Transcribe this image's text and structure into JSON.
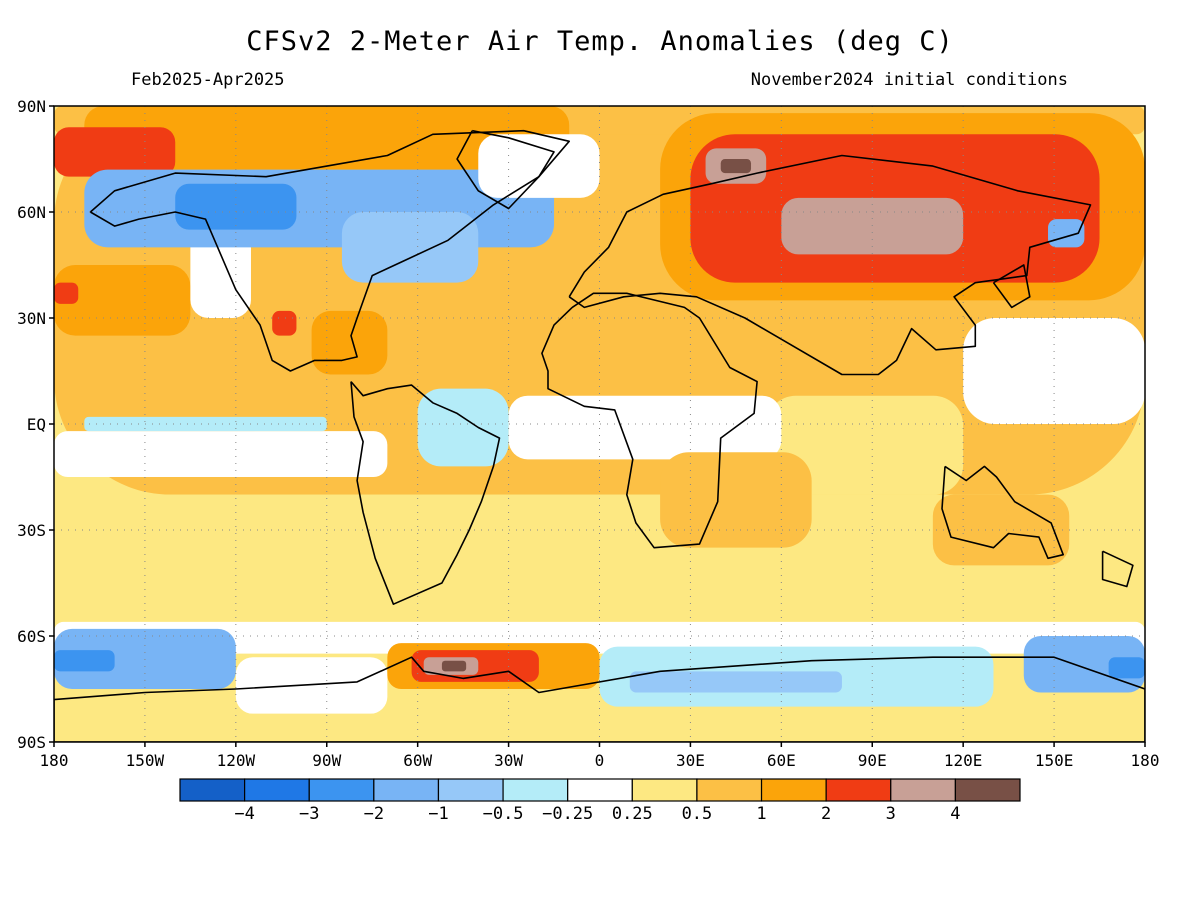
{
  "header": {
    "title": "CFSv2 2-Meter Air Temp. Anomalies (deg C)",
    "period": "Feb2025-Apr2025",
    "init": "November2024 initial conditions"
  },
  "map": {
    "lat_labels": [
      {
        "lat": 90,
        "label": "90N"
      },
      {
        "lat": 60,
        "label": "60N"
      },
      {
        "lat": 30,
        "label": "30N"
      },
      {
        "lat": 0,
        "label": "EQ"
      },
      {
        "lat": -30,
        "label": "30S"
      },
      {
        "lat": -60,
        "label": "60S"
      },
      {
        "lat": -90,
        "label": "90S"
      }
    ],
    "lon_labels": [
      {
        "lon": 0,
        "label": "180"
      },
      {
        "lon": 30,
        "label": "150W"
      },
      {
        "lon": 60,
        "label": "120W"
      },
      {
        "lon": 90,
        "label": "90W"
      },
      {
        "lon": 120,
        "label": "60W"
      },
      {
        "lon": 150,
        "label": "30W"
      },
      {
        "lon": 180,
        "label": "0"
      },
      {
        "lon": 210,
        "label": "30E"
      },
      {
        "lon": 240,
        "label": "60E"
      },
      {
        "lon": 270,
        "label": "90E"
      },
      {
        "lon": 300,
        "label": "120E"
      },
      {
        "lon": 330,
        "label": "150E"
      },
      {
        "lon": 360,
        "label": "180"
      }
    ],
    "colors": {
      "nm4": "#1460c8",
      "nm3": "#1f78e6",
      "nm2": "#3c94f0",
      "nm1": "#78b4f5",
      "nm05": "#96c8f8",
      "nm025": "#b4ecf8",
      "neutral": "#ffffff",
      "p025": "#fde882",
      "p05": "#fcc045",
      "p1": "#fba40a",
      "p2": "#f03c14",
      "p3": "#c8a096",
      "p4": "#785046"
    },
    "regions": [
      {
        "cls": "p05",
        "lon0": 0,
        "lon1": 360,
        "lat0": -20,
        "lat1": 90
      },
      {
        "cls": "p025",
        "lon0": 0,
        "lon1": 360,
        "lat0": -60,
        "lat1": -20
      },
      {
        "cls": "p05",
        "lon0": 0,
        "lon1": 360,
        "lat0": 82,
        "lat1": 90
      },
      {
        "cls": "p1",
        "lon0": 10,
        "lon1": 170,
        "lat0": 72,
        "lat1": 90
      },
      {
        "cls": "p2",
        "lon0": 0,
        "lon1": 40,
        "lat0": 70,
        "lat1": 84
      },
      {
        "cls": "p1",
        "lon0": 0,
        "lon1": 45,
        "lat0": 25,
        "lat1": 45
      },
      {
        "cls": "p2",
        "lon0": 0,
        "lon1": 8,
        "lat0": 34,
        "lat1": 40
      },
      {
        "cls": "neutral",
        "lon0": 45,
        "lon1": 65,
        "lat0": 30,
        "lat1": 55
      },
      {
        "cls": "nm1",
        "lon0": 10,
        "lon1": 165,
        "lat0": 50,
        "lat1": 72
      },
      {
        "cls": "nm2",
        "lon0": 40,
        "lon1": 80,
        "lat0": 55,
        "lat1": 68
      },
      {
        "cls": "nm05",
        "lon0": 95,
        "lon1": 140,
        "lat0": 40,
        "lat1": 60
      },
      {
        "cls": "neutral",
        "lon0": 140,
        "lon1": 180,
        "lat0": 64,
        "lat1": 82
      },
      {
        "cls": "p1",
        "lon0": 85,
        "lon1": 110,
        "lat0": 14,
        "lat1": 32
      },
      {
        "cls": "p2",
        "lon0": 72,
        "lon1": 80,
        "lat0": 25,
        "lat1": 32
      },
      {
        "cls": "p1",
        "lon0": 200,
        "lon1": 360,
        "lat0": 35,
        "lat1": 88
      },
      {
        "cls": "p2",
        "lon0": 210,
        "lon1": 345,
        "lat0": 40,
        "lat1": 82
      },
      {
        "cls": "p3",
        "lon0": 240,
        "lon1": 300,
        "lat0": 48,
        "lat1": 64
      },
      {
        "cls": "p3",
        "lon0": 215,
        "lon1": 235,
        "lat0": 68,
        "lat1": 78
      },
      {
        "cls": "p4",
        "lon0": 220,
        "lon1": 230,
        "lat0": 71,
        "lat1": 75
      },
      {
        "cls": "nm1",
        "lon0": 328,
        "lon1": 340,
        "lat0": 50,
        "lat1": 58
      },
      {
        "cls": "neutral",
        "lon0": 300,
        "lon1": 360,
        "lat0": 0,
        "lat1": 30
      },
      {
        "cls": "p025",
        "lon0": 235,
        "lon1": 300,
        "lat0": -20,
        "lat1": 8
      },
      {
        "cls": "neutral",
        "lon0": 150,
        "lon1": 240,
        "lat0": -10,
        "lat1": 8
      },
      {
        "cls": "neutral",
        "lon0": 0,
        "lon1": 110,
        "lat0": -15,
        "lat1": -2
      },
      {
        "cls": "nm025",
        "lon0": 10,
        "lon1": 90,
        "lat0": -2,
        "lat1": 2
      },
      {
        "cls": "nm025",
        "lon0": 120,
        "lon1": 150,
        "lat0": -12,
        "lat1": 10
      },
      {
        "cls": "p05",
        "lon0": 200,
        "lon1": 250,
        "lat0": -35,
        "lat1": -8
      },
      {
        "cls": "p05",
        "lon0": 290,
        "lon1": 335,
        "lat0": -40,
        "lat1": -20
      },
      {
        "cls": "neutral",
        "lon0": 0,
        "lon1": 360,
        "lat0": -65,
        "lat1": -56
      },
      {
        "cls": "nm1",
        "lon0": 0,
        "lon1": 60,
        "lat0": -75,
        "lat1": -58
      },
      {
        "cls": "nm2",
        "lon0": 0,
        "lon1": 20,
        "lat0": -70,
        "lat1": -64
      },
      {
        "cls": "nm1",
        "lon0": 320,
        "lon1": 360,
        "lat0": -76,
        "lat1": -60
      },
      {
        "cls": "nm2",
        "lon0": 348,
        "lon1": 360,
        "lat0": -72,
        "lat1": -66
      },
      {
        "cls": "nm025",
        "lon0": 180,
        "lon1": 310,
        "lat0": -80,
        "lat1": -63
      },
      {
        "cls": "nm05",
        "lon0": 190,
        "lon1": 260,
        "lat0": -76,
        "lat1": -70
      },
      {
        "cls": "neutral",
        "lon0": 60,
        "lon1": 110,
        "lat0": -82,
        "lat1": -66
      },
      {
        "cls": "p1",
        "lon0": 110,
        "lon1": 180,
        "lat0": -75,
        "lat1": -62
      },
      {
        "cls": "p2",
        "lon0": 118,
        "lon1": 160,
        "lat0": -73,
        "lat1": -64
      },
      {
        "cls": "p3",
        "lon0": 122,
        "lon1": 140,
        "lat0": -71,
        "lat1": -66
      },
      {
        "cls": "p4",
        "lon0": 128,
        "lon1": 136,
        "lat0": -70,
        "lat1": -67
      },
      {
        "cls": "p025",
        "lon0": 0,
        "lon1": 360,
        "lat0": -90,
        "lat1": -82
      }
    ],
    "coastlines": [
      [
        [
          12,
          60
        ],
        [
          20,
          66
        ],
        [
          40,
          71
        ],
        [
          70,
          70
        ],
        [
          90,
          73
        ],
        [
          110,
          76
        ],
        [
          125,
          82
        ],
        [
          155,
          83
        ],
        [
          170,
          80
        ],
        [
          160,
          70
        ],
        [
          145,
          62
        ],
        [
          130,
          52
        ],
        [
          115,
          46
        ],
        [
          110,
          44
        ],
        [
          105,
          42
        ],
        [
          100,
          30
        ],
        [
          98,
          25
        ],
        [
          100,
          19
        ],
        [
          95,
          18
        ],
        [
          86,
          18
        ],
        [
          78,
          15
        ],
        [
          72,
          18
        ],
        [
          68,
          28
        ],
        [
          60,
          38
        ],
        [
          55,
          48
        ],
        [
          50,
          58
        ],
        [
          40,
          60
        ],
        [
          28,
          58
        ],
        [
          20,
          56
        ],
        [
          12,
          60
        ]
      ],
      [
        [
          98,
          12
        ],
        [
          102,
          8
        ],
        [
          110,
          10
        ],
        [
          118,
          11
        ],
        [
          125,
          6
        ],
        [
          133,
          3
        ],
        [
          140,
          -1
        ],
        [
          147,
          -4
        ],
        [
          145,
          -12
        ],
        [
          141,
          -22
        ],
        [
          137,
          -30
        ],
        [
          133,
          -37
        ],
        [
          128,
          -45
        ],
        [
          112,
          -51
        ],
        [
          106,
          -38
        ],
        [
          102,
          -25
        ],
        [
          100,
          -16
        ],
        [
          102,
          -5
        ],
        [
          99,
          2
        ],
        [
          98,
          12
        ]
      ],
      [
        [
          170,
          36
        ],
        [
          175,
          43
        ],
        [
          183,
          50
        ],
        [
          189,
          60
        ],
        [
          201,
          65
        ],
        [
          217,
          68
        ],
        [
          232,
          71
        ],
        [
          260,
          76
        ],
        [
          290,
          73
        ],
        [
          318,
          66
        ],
        [
          342,
          62
        ],
        [
          338,
          54
        ],
        [
          322,
          50
        ],
        [
          321,
          42
        ],
        [
          304,
          40
        ],
        [
          297,
          36
        ],
        [
          304,
          28
        ],
        [
          304,
          22
        ],
        [
          291,
          21
        ],
        [
          283,
          27
        ],
        [
          278,
          18
        ],
        [
          272,
          14
        ],
        [
          260,
          14
        ],
        [
          238,
          25
        ],
        [
          228,
          30
        ],
        [
          212,
          36
        ],
        [
          200,
          37
        ],
        [
          188,
          36
        ],
        [
          175,
          33
        ],
        [
          170,
          36
        ]
      ],
      [
        [
          171,
          33
        ],
        [
          178,
          37
        ],
        [
          189,
          37
        ],
        [
          208,
          33
        ],
        [
          213,
          30
        ],
        [
          223,
          16
        ],
        [
          232,
          12
        ],
        [
          231,
          3
        ],
        [
          220,
          -4
        ],
        [
          219,
          -22
        ],
        [
          213,
          -34
        ],
        [
          198,
          -35
        ],
        [
          192,
          -28
        ],
        [
          189,
          -20
        ],
        [
          191,
          -10
        ],
        [
          185,
          4
        ],
        [
          175,
          5
        ],
        [
          163,
          10
        ],
        [
          163,
          15
        ],
        [
          161,
          20
        ],
        [
          165,
          28
        ],
        [
          171,
          33
        ]
      ],
      [
        [
          294,
          -12
        ],
        [
          301,
          -16
        ],
        [
          307,
          -12
        ],
        [
          311,
          -15
        ],
        [
          317,
          -22
        ],
        [
          329,
          -28
        ],
        [
          333,
          -37
        ],
        [
          328,
          -38
        ],
        [
          325,
          -32
        ],
        [
          315,
          -31
        ],
        [
          310,
          -35
        ],
        [
          296,
          -32
        ],
        [
          293,
          -24
        ],
        [
          294,
          -12
        ]
      ],
      [
        [
          30,
          -76
        ],
        [
          60,
          -75
        ],
        [
          100,
          -73
        ],
        [
          118,
          -66
        ],
        [
          122,
          -70
        ],
        [
          135,
          -72
        ],
        [
          150,
          -70
        ],
        [
          160,
          -76
        ],
        [
          200,
          -70
        ],
        [
          250,
          -67
        ],
        [
          290,
          -66
        ],
        [
          330,
          -66
        ],
        [
          360,
          -75
        ],
        [
          360,
          -90
        ],
        [
          0,
          -90
        ],
        [
          0,
          -78
        ],
        [
          30,
          -76
        ]
      ],
      [
        [
          138,
          83
        ],
        [
          150,
          81
        ],
        [
          165,
          77
        ],
        [
          160,
          70
        ],
        [
          150,
          61
        ],
        [
          140,
          66
        ],
        [
          133,
          75
        ],
        [
          138,
          83
        ]
      ],
      [
        [
          346,
          -36
        ],
        [
          356,
          -40
        ],
        [
          354,
          -46
        ],
        [
          346,
          -44
        ],
        [
          346,
          -36
        ]
      ],
      [
        [
          310,
          40
        ],
        [
          320,
          45
        ],
        [
          322,
          36
        ],
        [
          316,
          33
        ],
        [
          310,
          40
        ]
      ]
    ]
  },
  "colorbar": {
    "boxes": [
      {
        "cls": "nm4"
      },
      {
        "cls": "nm3"
      },
      {
        "cls": "nm2"
      },
      {
        "cls": "nm1"
      },
      {
        "cls": "nm05"
      },
      {
        "cls": "nm025"
      },
      {
        "cls": "neutral"
      },
      {
        "cls": "p025"
      },
      {
        "cls": "p05"
      },
      {
        "cls": "p1"
      },
      {
        "cls": "p2"
      },
      {
        "cls": "p3"
      },
      {
        "cls": "p4"
      }
    ],
    "labels": [
      "-4",
      "-3",
      "-2",
      "-1",
      "-0.5",
      "-0.25",
      "0.25",
      "0.5",
      "1",
      "2",
      "3",
      "4"
    ]
  }
}
